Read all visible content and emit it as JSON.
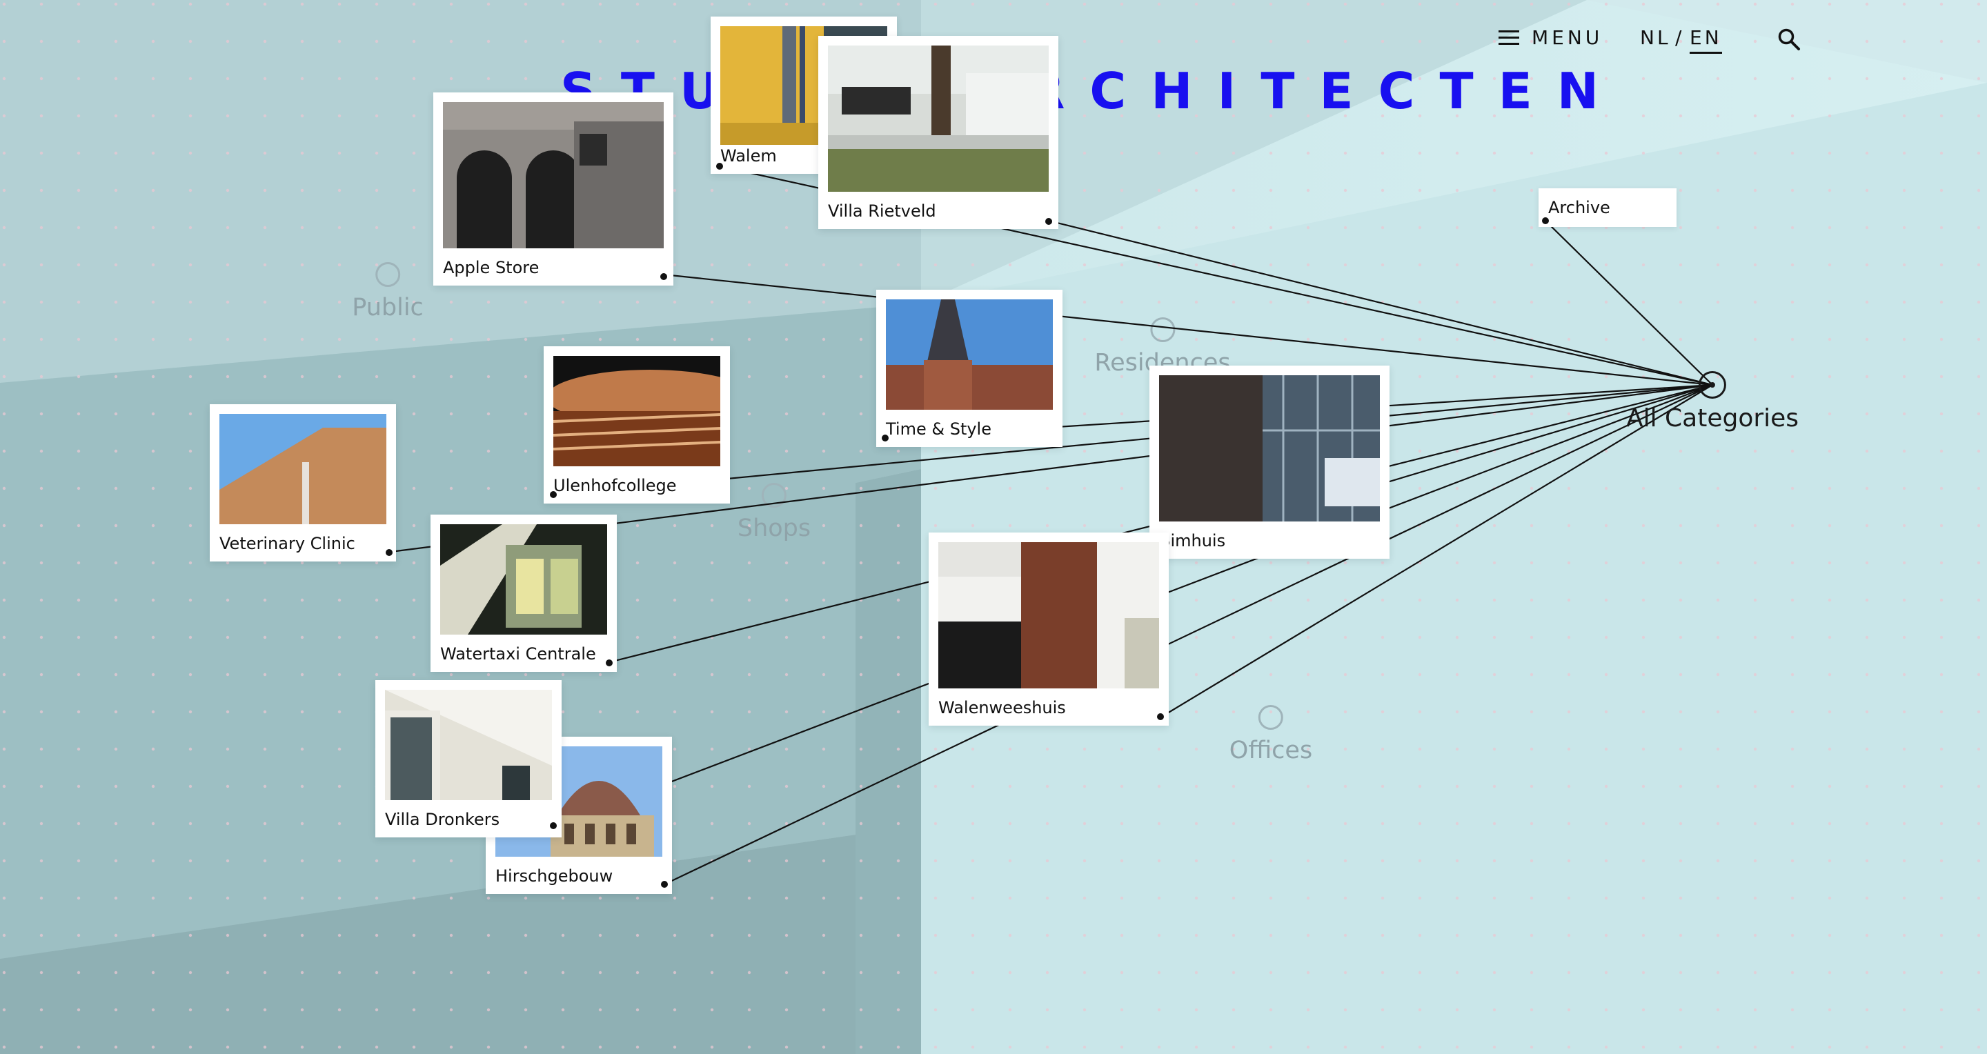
{
  "site": {
    "logo_text": "STUDIO ARCHITECTEN",
    "accent_color": "#1810f0"
  },
  "nav": {
    "menu_label": "MENU",
    "menu_icon": "hamburger-icon",
    "lang_nl": "NL",
    "lang_separator": "/",
    "lang_en": "EN",
    "active_lang": "EN",
    "search_icon": "search-icon"
  },
  "categories": {
    "public": "Public",
    "residences": "Residences",
    "shops": "Shops",
    "offices": "Offices",
    "all": "All Categories",
    "archive": "Archive"
  },
  "projects": {
    "walem": "Walem",
    "villa_rietveld": "Villa Rietveld",
    "apple_store": "Apple Store",
    "time_style": "Time & Style",
    "ulenhofcollege": "Ulenhofcollege",
    "veterinary_clinic": "Veterinary Clinic",
    "bimhuis": "Bimhuis",
    "watertaxi_centrale": "Watertaxi Centrale",
    "walenweeshuis": "Walenweeshuis",
    "villa_dronkers": "Villa Dronkers",
    "hirschgebouw": "Hirschgebouw"
  }
}
